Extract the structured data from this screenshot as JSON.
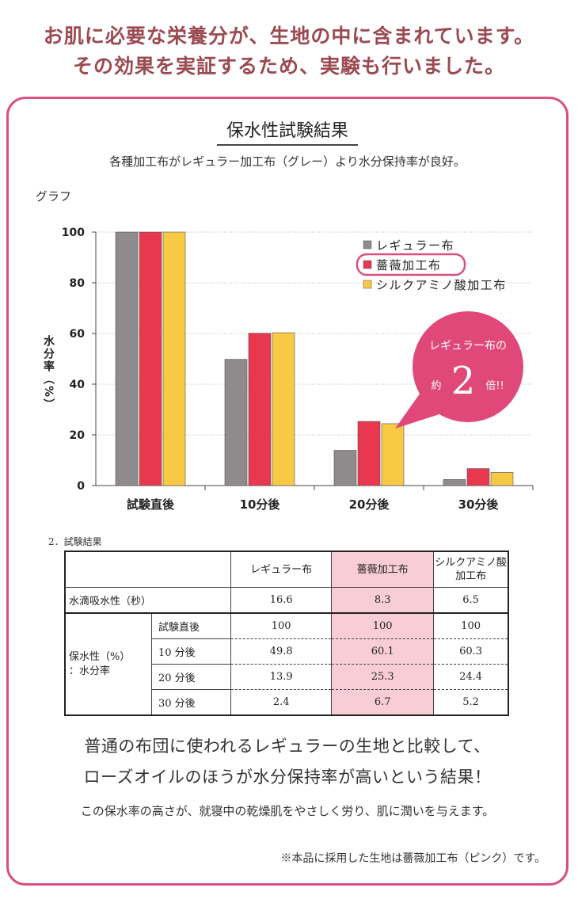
{
  "headline": {
    "line1": "お肌に必要な栄養分が、生地の中に含まれています。",
    "line2": "その効果を実証するため、実験も行いました。"
  },
  "card": {
    "title": "保水性試験結果",
    "subtitle": "各種加工布がレギュラー加工布（グレー）より水分保持率が良好。",
    "graph_label": "グラフ"
  },
  "chart_data": {
    "type": "bar",
    "categories": [
      "試験直後",
      "10分後",
      "20分後",
      "30分後"
    ],
    "series": [
      {
        "name": "レギュラー布",
        "values": [
          100,
          49.8,
          13.9,
          2.4
        ],
        "color": "#8f8a8b"
      },
      {
        "name": "薔薇加工布",
        "values": [
          100,
          60.1,
          25.3,
          6.7
        ],
        "color": "#e8384f"
      },
      {
        "name": "シルクアミノ酸加工布",
        "values": [
          100,
          60.3,
          24.4,
          5.2
        ],
        "color": "#f7c944"
      }
    ],
    "ylabel": "水分率（%）",
    "ylim": [
      0,
      100
    ],
    "yticks": [
      0,
      20,
      40,
      60,
      80,
      100
    ],
    "legend_position": "top-right",
    "highlighted_series": "薔薇加工布",
    "grid": true,
    "callout": {
      "line1": "レギュラー布の",
      "prefix": "約",
      "number": "2",
      "suffix": "倍!!",
      "color": "#e0487a"
    }
  },
  "table": {
    "caption": "2．試験結果",
    "headers": [
      "レギュラー布",
      "薔薇加工布",
      "シルクアミノ酸加工布"
    ],
    "header3_line1": "シルクアミノ酸",
    "header3_line2": "加工布",
    "water_row": {
      "label": "水滴吸水性（秒）",
      "values": [
        "16.6",
        "8.3",
        "6.5"
      ]
    },
    "retention_label_line1": "保水性（%）",
    "retention_label_line2": "：水分率",
    "retention_rows": [
      {
        "label": "試験直後",
        "values": [
          "100",
          "100",
          "100"
        ]
      },
      {
        "label": "10 分後",
        "values": [
          "49.8",
          "60.1",
          "60.3"
        ]
      },
      {
        "label": "20 分後",
        "values": [
          "13.9",
          "25.3",
          "24.4"
        ]
      },
      {
        "label": "30 分後",
        "values": [
          "2.4",
          "6.7",
          "5.2"
        ]
      }
    ]
  },
  "summary": {
    "line1": "普通の布団に使われるレギュラーの生地と比較して、",
    "line2": "ローズオイルのほうが水分保持率が高いという結果！",
    "line3": "この保水率の高さが、就寝中の乾燥肌をやさしく労り、肌に潤いを与えます。"
  },
  "note": "※本品に採用した生地は薔薇加工布（ピンク）です。",
  "colors": {
    "accent": "#d94f82",
    "headline": "#9b4a52",
    "table_highlight": "#f9cdd6"
  }
}
